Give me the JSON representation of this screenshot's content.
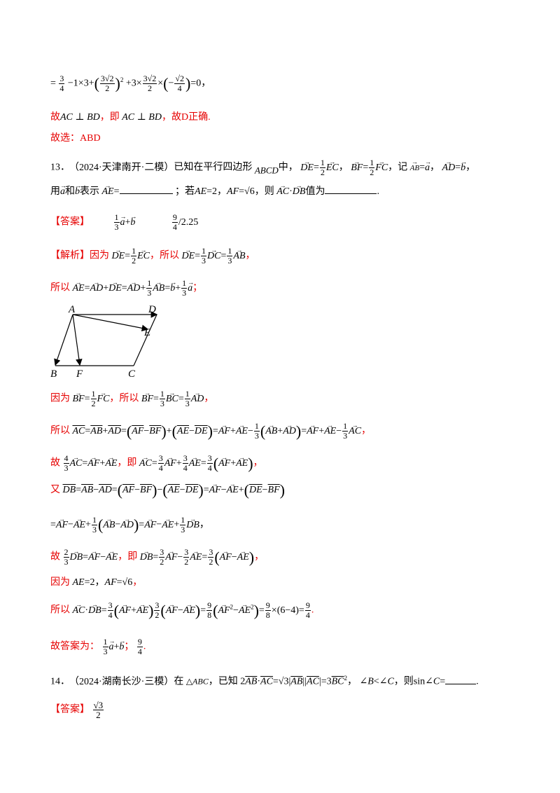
{
  "lines": {
    "l1": "=3/4−1×3+(3√2/2)²+3×3√2/2×(−√2/4)=0，",
    "l2_prefix": "故",
    "l2_math1": "AC ⊥ BD",
    "l2_mid": "，即",
    "l2_math2": "AC ⊥ BD",
    "l2_suffix": "，故D正确.",
    "l3": "故选：ABD"
  },
  "q13": {
    "number": "13．",
    "source": "（2024·天津南开·二模）",
    "stem1": "已知在平行四边形",
    "shape": "ABCD",
    "stem2": "中，",
    "cond": "DE = 1/2 EC，BF = 1/2 FC，记 AB = a，AD = b，",
    "stem3_a": "用",
    "stem3_b": "和",
    "stem3_c": "表示",
    "stem3_d": "；若",
    "cond2": "AE = 2，AF = √6，",
    "stem3_e": "则",
    "stem3_f": "值为",
    "answer_label": "【答案】",
    "answer1": "1/3 a + b",
    "answer2_num": "9",
    "answer2_den": "4",
    "answer2_alt": "2.25",
    "analysis_label": "【解析】",
    "a1_prefix": "因为",
    "a1_mid": "，所以",
    "a2_prefix": "所以",
    "a3_prefix": "因为",
    "a3_mid": "，所以",
    "a4_prefix": "所以",
    "a5_prefix": "故",
    "a5_mid": "，即",
    "a6_prefix": "又",
    "a8_prefix": "故",
    "a8_mid": "，即",
    "a9_prefix": "因为",
    "a10_prefix": "所以",
    "final_prefix": "故答案为：",
    "final_sep": "；",
    "final_end": "."
  },
  "figure": {
    "labels": {
      "A": "A",
      "D": "D",
      "E": "E",
      "B": "B",
      "F": "F",
      "C": "C"
    }
  },
  "q14": {
    "number": "14．",
    "source": "（2024·湖南长沙·三模）",
    "stem1": "在",
    "triangle": "△ABC",
    "stem2": "，已知",
    "stem3": "，",
    "stem4": "，则",
    "answer_label": "【答案】",
    "answer": "√3/2"
  }
}
